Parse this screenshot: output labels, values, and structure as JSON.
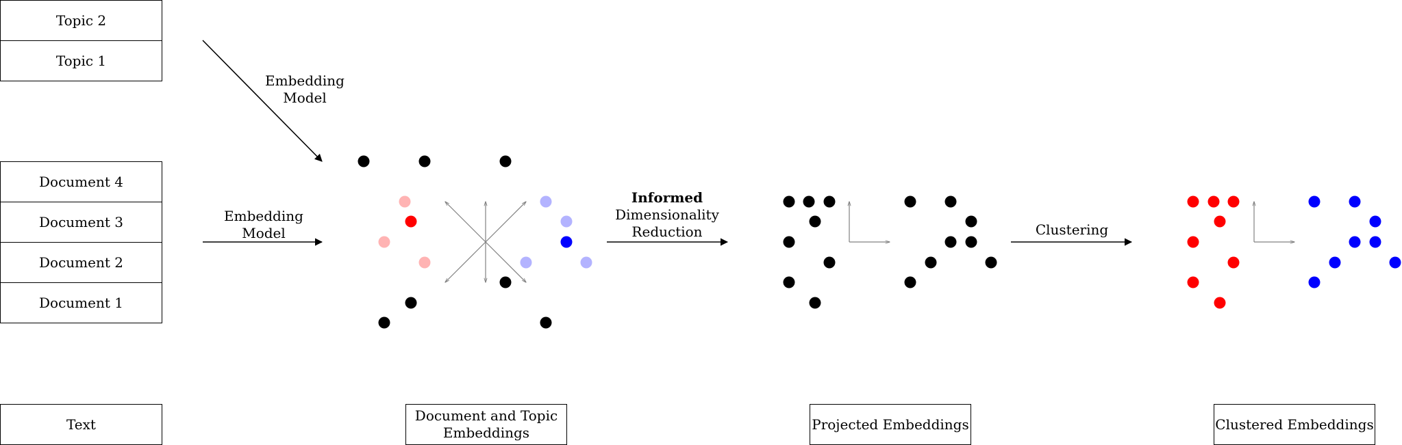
{
  "topics": [
    "Topic 2",
    "Topic 1"
  ],
  "documents": [
    "Document 4",
    "Document 3",
    "Document 2",
    "Document 1"
  ],
  "arrows": {
    "topic_model": [
      "Embedding",
      "Model"
    ],
    "doc_model": [
      "Embedding",
      "Model"
    ],
    "reduction": [
      "Informed",
      "Dimensionality",
      "Reduction"
    ],
    "clustering": "Clustering"
  },
  "captions": {
    "text": "Text",
    "embeddings": [
      "Document and Topic",
      "Embeddings"
    ],
    "projected": "Projected Embeddings",
    "clustered": "Clustered Embeddings"
  },
  "colors": {
    "black": "#000000",
    "red": "#ff0000",
    "light_red": "#ffb3b3",
    "blue": "#0000ff",
    "light_blue": "#b3b3ff",
    "grey": "#808080"
  }
}
